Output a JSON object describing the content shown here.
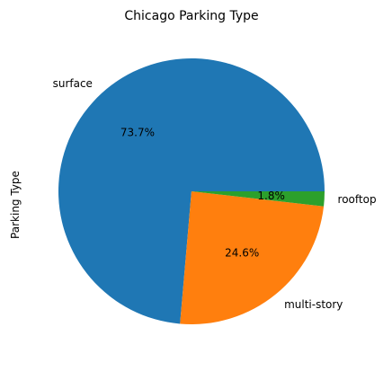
{
  "chart_data": {
    "type": "pie",
    "title": "Chicago Parking Type",
    "ylabel": "Parking Type",
    "legend": "none",
    "start_angle_deg": 0,
    "direction": "counterclockwise",
    "slices": [
      {
        "label": "surface",
        "value": 73.7,
        "value_label": "73.7%",
        "color": "#1f77b4"
      },
      {
        "label": "multi-story",
        "value": 24.6,
        "value_label": "24.6%",
        "color": "#ff7f0e"
      },
      {
        "label": "rooftop",
        "value": 1.8,
        "value_label": "1.8%",
        "color": "#2ca02c"
      }
    ]
  }
}
